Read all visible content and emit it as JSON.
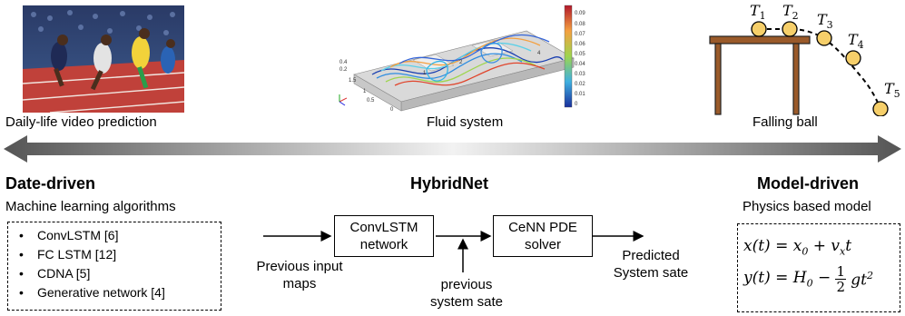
{
  "images": {
    "video_caption": "Daily-life video prediction",
    "fluid_caption": "Fluid system",
    "ball_caption": "Falling ball",
    "ball_labels": [
      "T1",
      "T2",
      "T3",
      "T4",
      "T5"
    ],
    "colorbar_ticks": [
      "0.09",
      "0.08",
      "0.07",
      "0.06",
      "0.05",
      "0.04",
      "0.03",
      "0.02",
      "0.01",
      "0"
    ]
  },
  "left": {
    "heading": "Date-driven",
    "subheading": "Machine learning algorithms",
    "items": [
      "ConvLSTM [6]",
      "FC LSTM [12]",
      "CDNA [5]",
      "Generative network [4]"
    ]
  },
  "center": {
    "heading": "HybridNet",
    "box1": "ConvLSTM network",
    "box2": "CeNN PDE solver",
    "input_label": "Previous input maps",
    "feedback_label": "previous system sate",
    "output_label": "Predicted System sate"
  },
  "right": {
    "heading": "Model-driven",
    "subheading": "Physics based model"
  },
  "colors": {
    "gradient_dark": "#555555",
    "gradient_light": "#f2f2f2",
    "ball_fill": "#f6cf6a",
    "table_brown": "#9a5a2a"
  }
}
